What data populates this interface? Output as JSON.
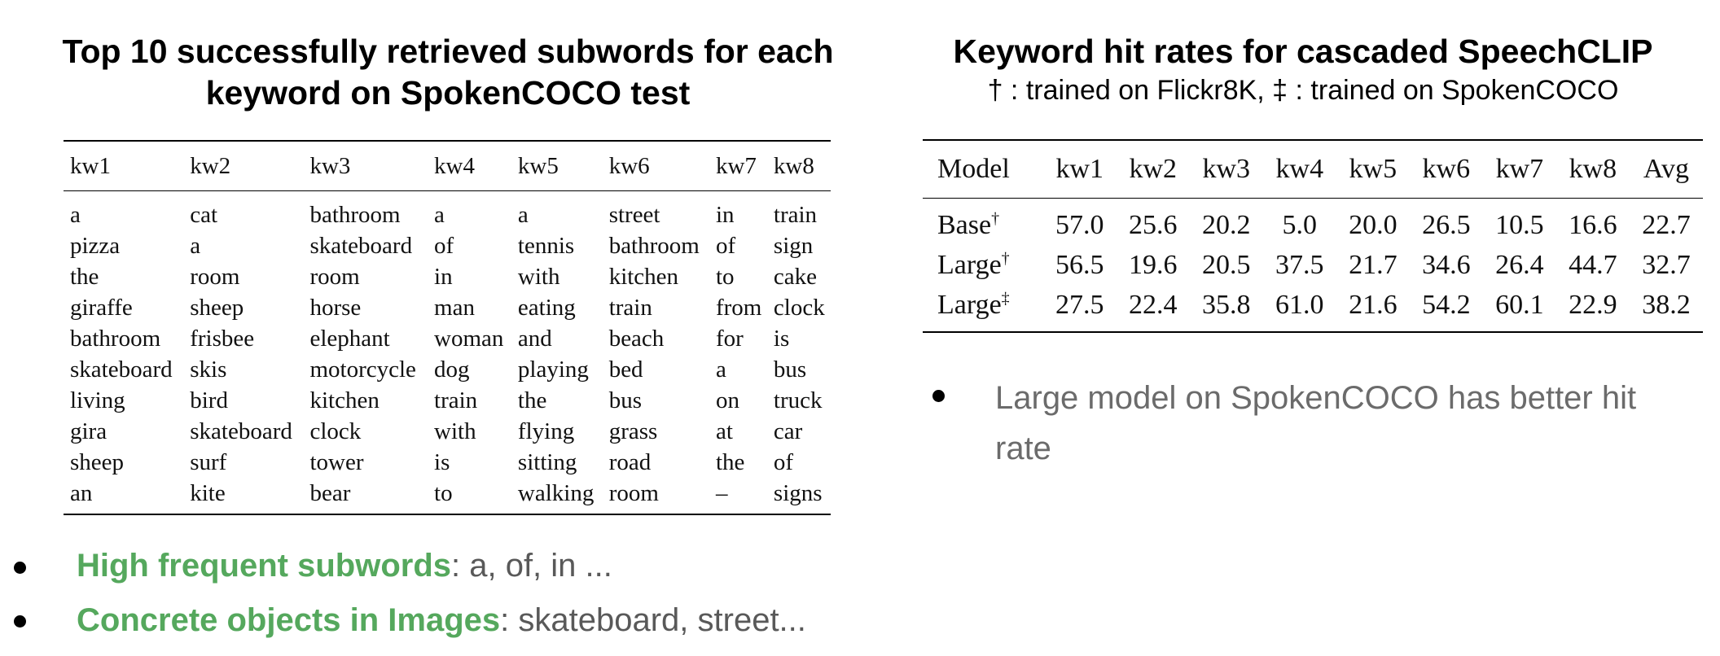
{
  "left": {
    "title_line1": "Top 10 successfully retrieved subwords for each",
    "title_line2": "keyword on SpokenCOCO test",
    "headers": [
      "kw1",
      "kw2",
      "kw3",
      "kw4",
      "kw5",
      "kw6",
      "kw7",
      "kw8"
    ],
    "rows": [
      [
        "a",
        "cat",
        "bathroom",
        "a",
        "a",
        "street",
        "in",
        "train"
      ],
      [
        "pizza",
        "a",
        "skateboard",
        "of",
        "tennis",
        "bathroom",
        "of",
        "sign"
      ],
      [
        "the",
        "room",
        "room",
        "in",
        "with",
        "kitchen",
        "to",
        "cake"
      ],
      [
        "giraffe",
        "sheep",
        "horse",
        "man",
        "eating",
        "train",
        "from",
        "clock"
      ],
      [
        "bathroom",
        "frisbee",
        "elephant",
        "woman",
        "and",
        "beach",
        "for",
        "is"
      ],
      [
        "skateboard",
        "skis",
        "motorcycle",
        "dog",
        "playing",
        "bed",
        "a",
        "bus"
      ],
      [
        "living",
        "bird",
        "kitchen",
        "train",
        "the",
        "bus",
        "on",
        "truck"
      ],
      [
        "gira",
        "skateboard",
        "clock",
        "with",
        "flying",
        "grass",
        "at",
        "car"
      ],
      [
        "sheep",
        "surf",
        "tower",
        "is",
        "sitting",
        "road",
        "the",
        "of"
      ],
      [
        "an",
        "kite",
        "bear",
        "to",
        "walking",
        "room",
        "–",
        "signs"
      ]
    ],
    "bullets": [
      {
        "highlight": "High frequent subwords",
        "rest": ":  a, of, in ..."
      },
      {
        "highlight": "Concrete objects in Images",
        "rest": ": skateboard, street..."
      }
    ]
  },
  "right": {
    "title": "Keyword hit rates for cascaded SpeechCLIP",
    "subtitle": "† : trained on Flickr8K,  ‡ : trained on SpokenCOCO",
    "headers": [
      "Model",
      "kw1",
      "kw2",
      "kw3",
      "kw4",
      "kw5",
      "kw6",
      "kw7",
      "kw8",
      "Avg"
    ],
    "rows": [
      {
        "model": "Base",
        "mark": "†",
        "values": [
          "57.0",
          "25.6",
          "20.2",
          "5.0",
          "20.0",
          "26.5",
          "10.5",
          "16.6",
          "22.7"
        ]
      },
      {
        "model": "Large",
        "mark": "†",
        "values": [
          "56.5",
          "19.6",
          "20.5",
          "37.5",
          "21.7",
          "34.6",
          "26.4",
          "44.7",
          "32.7"
        ]
      },
      {
        "model": "Large",
        "mark": "‡",
        "values": [
          "27.5",
          "22.4",
          "35.8",
          "61.0",
          "21.6",
          "54.2",
          "60.1",
          "22.9",
          "38.2"
        ]
      }
    ],
    "bullet": "Large model on SpokenCOCO has better hit rate"
  },
  "colors": {
    "highlight_green": "#55a85d",
    "bullet_text_gray": "#595959"
  }
}
